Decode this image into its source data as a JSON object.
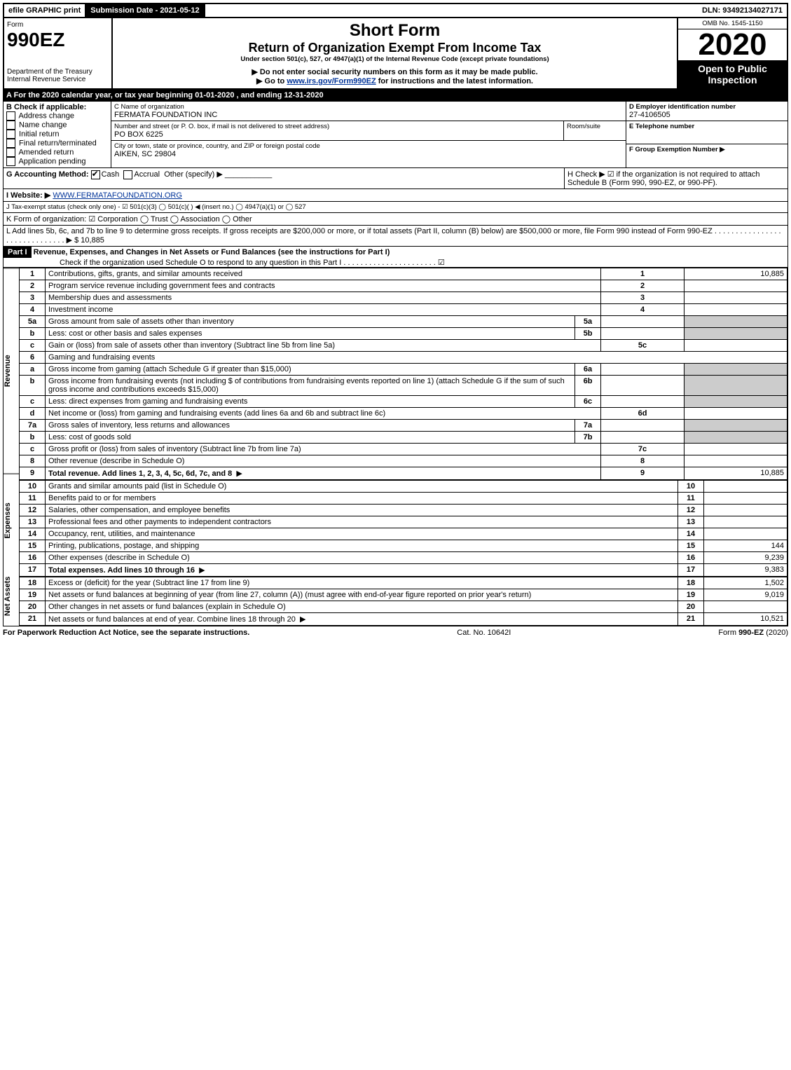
{
  "topbar": {
    "efile": "efile GRAPHIC print",
    "submission_label": "Submission Date - 2021-05-12",
    "dln_label": "DLN: 93492134027171"
  },
  "header": {
    "form_word": "Form",
    "form_number": "990EZ",
    "dept1": "Department of the Treasury",
    "dept2": "Internal Revenue Service",
    "title1": "Short Form",
    "title2": "Return of Organization Exempt From Income Tax",
    "under": "Under section 501(c), 527, or 4947(a)(1) of the Internal Revenue Code (except private foundations)",
    "warn": "▶ Do not enter social security numbers on this form as it may be made public.",
    "goto_pre": "▶ Go to ",
    "goto_link": "www.irs.gov/Form990EZ",
    "goto_post": " for instructions and the latest information.",
    "omb": "OMB No. 1545-1150",
    "year": "2020",
    "open": "Open to Public Inspection"
  },
  "periodA": "A  For the 2020 calendar year, or tax year beginning 01-01-2020 , and ending 12-31-2020",
  "boxB": {
    "title": "B  Check if applicable:",
    "items": [
      "Address change",
      "Name change",
      "Initial return",
      "Final return/terminated",
      "Amended return",
      "Application pending"
    ]
  },
  "boxC": {
    "label": "C Name of organization",
    "name": "FERMATA FOUNDATION INC",
    "addr_label": "Number and street (or P. O. box, if mail is not delivered to street address)",
    "room": "Room/suite",
    "addr": "PO BOX 6225",
    "city_label": "City or town, state or province, country, and ZIP or foreign postal code",
    "city": "AIKEN, SC  29804"
  },
  "boxD": {
    "label": "D Employer identification number",
    "ein": "27-4106505"
  },
  "boxE": {
    "label": "E Telephone number"
  },
  "boxF": {
    "label": "F Group Exemption Number  ▶"
  },
  "lineG": {
    "label": "G Accounting Method:",
    "cash": "Cash",
    "accrual": "Accrual",
    "other": "Other (specify) ▶"
  },
  "lineH": {
    "text": "H  Check ▶ ☑ if the organization is not required to attach Schedule B (Form 990, 990-EZ, or 990-PF)."
  },
  "lineI": {
    "label": "I Website: ▶",
    "url": "WWW.FERMATAFOUNDATION.ORG"
  },
  "lineJ": "J Tax-exempt status (check only one) - ☑ 501(c)(3)  ◯ 501(c)(  ) ◀ (insert no.)  ◯ 4947(a)(1) or  ◯ 527",
  "lineK": "K Form of organization:  ☑ Corporation  ◯ Trust  ◯ Association  ◯ Other",
  "lineL": {
    "text": "L Add lines 5b, 6c, and 7b to line 9 to determine gross receipts. If gross receipts are $200,000 or more, or if total assets (Part II, column (B) below) are $500,000 or more, file Form 990 instead of Form 990-EZ . . . . . . . . . . . . . . . . . . . . . . . . . . . . . . ▶",
    "amount": "$ 10,885"
  },
  "part1": {
    "label": "Part I",
    "title": "Revenue, Expenses, and Changes in Net Assets or Fund Balances (see the instructions for Part I)",
    "schedO": "Check if the organization used Schedule O to respond to any question in this Part I . . . . . . . . . . . . . . . . . . . . . . ☑"
  },
  "section_labels": {
    "revenue": "Revenue",
    "expenses": "Expenses",
    "netassets": "Net Assets"
  },
  "revenue_rows": [
    {
      "n": "1",
      "t": "Contributions, gifts, grants, and similar amounts received",
      "r": "1",
      "a": "10,885"
    },
    {
      "n": "2",
      "t": "Program service revenue including government fees and contracts",
      "r": "2",
      "a": ""
    },
    {
      "n": "3",
      "t": "Membership dues and assessments",
      "r": "3",
      "a": ""
    },
    {
      "n": "4",
      "t": "Investment income",
      "r": "4",
      "a": ""
    },
    {
      "n": "5a",
      "t": "Gross amount from sale of assets other than inventory",
      "sub": "5a"
    },
    {
      "n": "b",
      "t": "Less: cost or other basis and sales expenses",
      "sub": "5b"
    },
    {
      "n": "c",
      "t": "Gain or (loss) from sale of assets other than inventory (Subtract line 5b from line 5a)",
      "r": "5c",
      "a": ""
    },
    {
      "n": "6",
      "t": "Gaming and fundraising events",
      "header": true
    },
    {
      "n": "a",
      "t": "Gross income from gaming (attach Schedule G if greater than $15,000)",
      "sub": "6a"
    },
    {
      "n": "b",
      "t": "Gross income from fundraising events (not including $                  of contributions from fundraising events reported on line 1) (attach Schedule G if the sum of such gross income and contributions exceeds $15,000)",
      "sub": "6b"
    },
    {
      "n": "c",
      "t": "Less: direct expenses from gaming and fundraising events",
      "sub": "6c"
    },
    {
      "n": "d",
      "t": "Net income or (loss) from gaming and fundraising events (add lines 6a and 6b and subtract line 6c)",
      "r": "6d",
      "a": ""
    },
    {
      "n": "7a",
      "t": "Gross sales of inventory, less returns and allowances",
      "sub": "7a"
    },
    {
      "n": "b",
      "t": "Less: cost of goods sold",
      "sub": "7b"
    },
    {
      "n": "c",
      "t": "Gross profit or (loss) from sales of inventory (Subtract line 7b from line 7a)",
      "r": "7c",
      "a": ""
    },
    {
      "n": "8",
      "t": "Other revenue (describe in Schedule O)",
      "r": "8",
      "a": ""
    },
    {
      "n": "9",
      "t": "Total revenue. Add lines 1, 2, 3, 4, 5c, 6d, 7c, and 8",
      "r": "9",
      "a": "10,885",
      "bold": true,
      "arrow": true
    }
  ],
  "expense_rows": [
    {
      "n": "10",
      "t": "Grants and similar amounts paid (list in Schedule O)",
      "r": "10",
      "a": ""
    },
    {
      "n": "11",
      "t": "Benefits paid to or for members",
      "r": "11",
      "a": ""
    },
    {
      "n": "12",
      "t": "Salaries, other compensation, and employee benefits",
      "r": "12",
      "a": ""
    },
    {
      "n": "13",
      "t": "Professional fees and other payments to independent contractors",
      "r": "13",
      "a": ""
    },
    {
      "n": "14",
      "t": "Occupancy, rent, utilities, and maintenance",
      "r": "14",
      "a": ""
    },
    {
      "n": "15",
      "t": "Printing, publications, postage, and shipping",
      "r": "15",
      "a": "144"
    },
    {
      "n": "16",
      "t": "Other expenses (describe in Schedule O)",
      "r": "16",
      "a": "9,239"
    },
    {
      "n": "17",
      "t": "Total expenses. Add lines 10 through 16",
      "r": "17",
      "a": "9,383",
      "bold": true,
      "arrow": true
    }
  ],
  "netasset_rows": [
    {
      "n": "18",
      "t": "Excess or (deficit) for the year (Subtract line 17 from line 9)",
      "r": "18",
      "a": "1,502"
    },
    {
      "n": "19",
      "t": "Net assets or fund balances at beginning of year (from line 27, column (A)) (must agree with end-of-year figure reported on prior year's return)",
      "r": "19",
      "a": "9,019"
    },
    {
      "n": "20",
      "t": "Other changes in net assets or fund balances (explain in Schedule O)",
      "r": "20",
      "a": ""
    },
    {
      "n": "21",
      "t": "Net assets or fund balances at end of year. Combine lines 18 through 20",
      "r": "21",
      "a": "10,521",
      "arrow": true
    }
  ],
  "footer": {
    "left": "For Paperwork Reduction Act Notice, see the separate instructions.",
    "mid": "Cat. No. 10642I",
    "right": "Form 990-EZ (2020)"
  }
}
